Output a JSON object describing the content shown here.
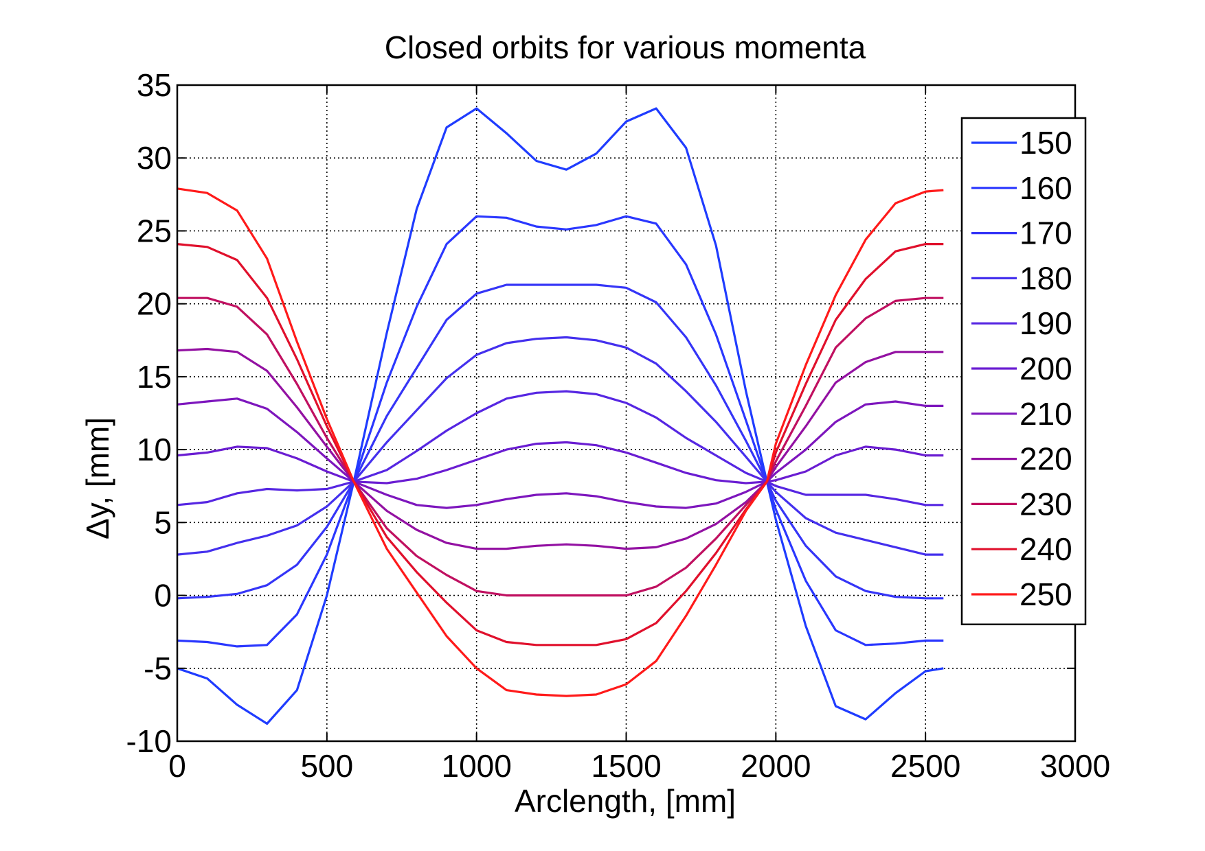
{
  "chart_data": {
    "type": "line",
    "title": "Closed orbits for various momenta",
    "xlabel": "Arclength, [mm]",
    "ylabel": "Δy, [mm]",
    "xlim": [
      0,
      3000
    ],
    "ylim": [
      -10,
      35
    ],
    "xticks": [
      0,
      500,
      1000,
      1500,
      2000,
      2500,
      3000
    ],
    "yticks": [
      -10,
      -5,
      0,
      5,
      10,
      15,
      20,
      25,
      30,
      35
    ],
    "grid": true,
    "legend_position": "top-right",
    "x": [
      0,
      100,
      200,
      300,
      400,
      500,
      590,
      700,
      800,
      900,
      1000,
      1100,
      1200,
      1300,
      1400,
      1500,
      1600,
      1700,
      1800,
      1900,
      1970,
      2000,
      2100,
      2200,
      2300,
      2400,
      2500,
      2560
    ],
    "series": [
      {
        "name": "150",
        "color": "#1f3cff",
        "values": [
          -5.0,
          -5.7,
          -7.5,
          -8.8,
          -6.5,
          0.0,
          7.8,
          18.0,
          26.5,
          32.1,
          33.4,
          31.7,
          29.8,
          29.2,
          30.3,
          32.5,
          33.4,
          30.7,
          24.0,
          14.0,
          7.8,
          5.2,
          -2.1,
          -7.6,
          -8.5,
          -6.7,
          -5.2,
          -5.0
        ]
      },
      {
        "name": "160",
        "color": "#2a37ff",
        "values": [
          -3.1,
          -3.2,
          -3.5,
          -3.4,
          -1.3,
          2.8,
          7.8,
          14.6,
          19.8,
          24.1,
          26.0,
          25.9,
          25.3,
          25.1,
          25.4,
          26.0,
          25.5,
          22.7,
          17.9,
          12.0,
          7.8,
          5.9,
          1.0,
          -2.4,
          -3.4,
          -3.3,
          -3.1,
          -3.1
        ]
      },
      {
        "name": "170",
        "color": "#3535f7",
        "values": [
          -0.2,
          -0.1,
          0.1,
          0.7,
          2.1,
          4.7,
          7.8,
          12.3,
          15.6,
          18.9,
          20.7,
          21.3,
          21.3,
          21.3,
          21.3,
          21.1,
          20.1,
          17.7,
          14.4,
          10.6,
          7.8,
          6.5,
          3.4,
          1.3,
          0.3,
          -0.1,
          -0.2,
          -0.2
        ]
      },
      {
        "name": "180",
        "color": "#4430ee",
        "values": [
          2.8,
          3.0,
          3.6,
          4.1,
          4.8,
          6.1,
          7.8,
          10.5,
          12.7,
          14.9,
          16.5,
          17.3,
          17.6,
          17.7,
          17.5,
          17.0,
          15.9,
          14.0,
          11.9,
          9.5,
          7.8,
          7.1,
          5.3,
          4.3,
          3.8,
          3.3,
          2.8,
          2.8
        ]
      },
      {
        "name": "190",
        "color": "#5626e2",
        "values": [
          6.2,
          6.4,
          7.0,
          7.3,
          7.2,
          7.3,
          7.8,
          8.6,
          9.9,
          11.3,
          12.5,
          13.5,
          13.9,
          14.0,
          13.8,
          13.2,
          12.2,
          10.8,
          9.6,
          8.4,
          7.8,
          7.5,
          6.9,
          6.9,
          6.9,
          6.6,
          6.2,
          6.2
        ]
      },
      {
        "name": "200",
        "color": "#6a1dd2",
        "values": [
          9.6,
          9.8,
          10.2,
          10.1,
          9.4,
          8.5,
          7.8,
          7.7,
          8.0,
          8.6,
          9.3,
          10.0,
          10.4,
          10.5,
          10.3,
          9.8,
          9.1,
          8.4,
          7.9,
          7.7,
          7.8,
          7.9,
          8.5,
          9.6,
          10.2,
          10.0,
          9.6,
          9.6
        ]
      },
      {
        "name": "210",
        "color": "#7d16bd",
        "values": [
          13.1,
          13.3,
          13.5,
          12.8,
          11.2,
          9.4,
          7.8,
          6.9,
          6.2,
          6.0,
          6.2,
          6.6,
          6.9,
          7.0,
          6.8,
          6.4,
          6.1,
          6.0,
          6.3,
          7.1,
          7.8,
          8.4,
          10.0,
          11.9,
          13.1,
          13.3,
          13.0,
          13.0
        ]
      },
      {
        "name": "220",
        "color": "#9311a2",
        "values": [
          16.8,
          16.9,
          16.7,
          15.4,
          12.9,
          10.2,
          7.8,
          5.8,
          4.5,
          3.6,
          3.2,
          3.2,
          3.4,
          3.5,
          3.4,
          3.2,
          3.3,
          3.9,
          4.9,
          6.4,
          7.8,
          8.8,
          11.6,
          14.6,
          16.0,
          16.7,
          16.7,
          16.7
        ]
      },
      {
        "name": "230",
        "color": "#c01060",
        "values": [
          20.4,
          20.4,
          19.8,
          17.9,
          14.5,
          10.8,
          7.8,
          4.6,
          2.7,
          1.4,
          0.3,
          0.0,
          0.0,
          0.0,
          0.0,
          0.0,
          0.6,
          1.9,
          3.9,
          6.2,
          7.8,
          9.2,
          13.0,
          17.0,
          19.0,
          20.2,
          20.4,
          20.4
        ]
      },
      {
        "name": "240",
        "color": "#e0102c",
        "values": [
          24.1,
          23.9,
          23.0,
          20.4,
          16.2,
          11.6,
          7.8,
          4.0,
          1.6,
          -0.5,
          -2.4,
          -3.2,
          -3.4,
          -3.4,
          -3.4,
          -3.0,
          -1.9,
          0.3,
          2.9,
          5.9,
          7.8,
          9.8,
          14.5,
          18.9,
          21.7,
          23.6,
          24.1,
          24.1
        ]
      },
      {
        "name": "250",
        "color": "#ff1a1a",
        "values": [
          27.9,
          27.6,
          26.4,
          23.1,
          17.4,
          12.1,
          7.8,
          3.2,
          0.2,
          -2.8,
          -5.0,
          -6.5,
          -6.8,
          -6.9,
          -6.8,
          -6.1,
          -4.5,
          -1.4,
          2.1,
          5.8,
          7.8,
          10.4,
          15.8,
          20.6,
          24.4,
          26.9,
          27.7,
          27.8
        ]
      }
    ]
  }
}
